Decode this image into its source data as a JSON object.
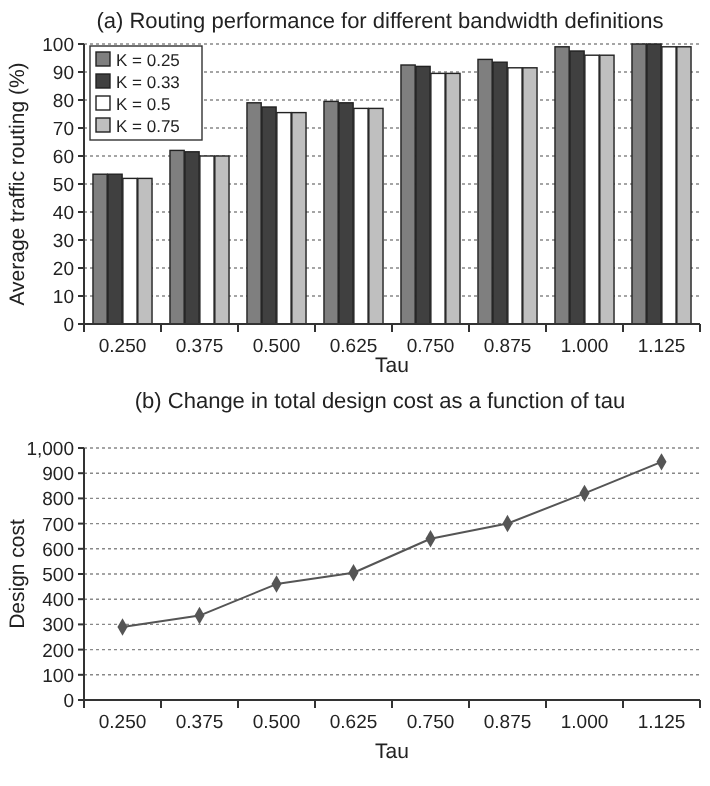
{
  "chart_data": [
    {
      "type": "bar",
      "title": "(a) Routing performance for different bandwidth definitions",
      "xlabel": "Tau",
      "ylabel": "Average traffic routing (%)",
      "categories": [
        "0.250",
        "0.375",
        "0.500",
        "0.625",
        "0.750",
        "0.875",
        "1.000",
        "1.125"
      ],
      "series": [
        {
          "name": "K = 0.25",
          "color": "#7f7f7f",
          "values": [
            53.5,
            62,
            79,
            79.5,
            92.5,
            94.5,
            99,
            100
          ]
        },
        {
          "name": "K = 0.33",
          "color": "#404040",
          "values": [
            53.5,
            61.5,
            77.5,
            79,
            92,
            93.5,
            97.5,
            100
          ]
        },
        {
          "name": "K = 0.5",
          "color": "#ffffff",
          "values": [
            52,
            60,
            75.5,
            77,
            89.5,
            91.5,
            96,
            99
          ]
        },
        {
          "name": "K = 0.75",
          "color": "#bfbfbf",
          "values": [
            52,
            60,
            75.5,
            77,
            89.5,
            91.5,
            96,
            99
          ]
        }
      ],
      "ylim": [
        0,
        100
      ],
      "yticks": [
        0,
        10,
        20,
        30,
        40,
        50,
        60,
        70,
        80,
        90,
        100
      ],
      "grid": "y",
      "legend": "top left"
    },
    {
      "type": "line",
      "title": "(b) Change in total design cost as a function of tau",
      "xlabel": "Tau",
      "ylabel": "Design cost",
      "categories": [
        "0.250",
        "0.375",
        "0.500",
        "0.625",
        "0.750",
        "0.875",
        "1.000",
        "1.125"
      ],
      "series": [
        {
          "color": "#555555",
          "values": [
            290,
            335,
            460,
            505,
            640,
            700,
            820,
            945
          ]
        }
      ],
      "ylim": [
        0,
        1000
      ],
      "yticks": [
        0,
        {
          "value": 100,
          "label": "100"
        },
        200,
        300,
        400,
        500,
        600,
        700,
        800,
        900,
        {
          "value": 1000,
          "label": "1,000"
        }
      ],
      "grid": "y",
      "marker": "diamond",
      "line_style": "solid"
    }
  ]
}
